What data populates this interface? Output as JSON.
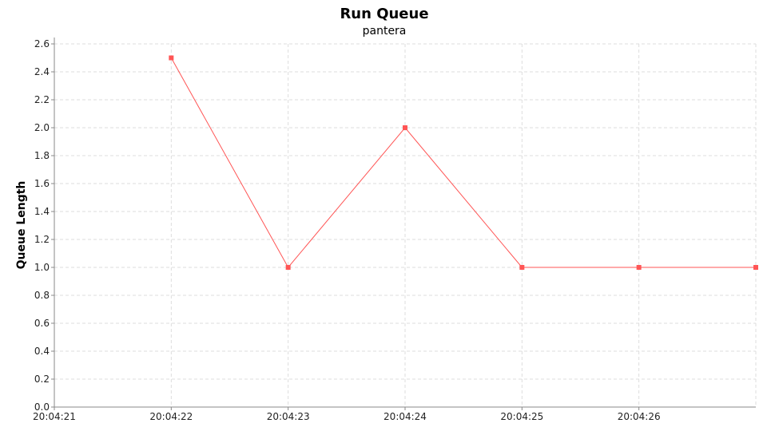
{
  "chart_data": {
    "type": "line",
    "title": "Run Queue",
    "subtitle": "pantera",
    "xlabel": "",
    "ylabel": "Queue Length",
    "x_ticks": [
      "20:04:21",
      "20:04:22",
      "20:04:23",
      "20:04:24",
      "20:04:25",
      "20:04:26"
    ],
    "x": [
      "20:04:22",
      "20:04:23",
      "20:04:24",
      "20:04:25",
      "20:04:26",
      "20:04:27"
    ],
    "series": [
      {
        "values": [
          2.5,
          1.0,
          2.0,
          1.0,
          1.0,
          1.0
        ],
        "color": "#ff5555"
      }
    ],
    "xlim": [
      "20:04:21",
      "20:04:27"
    ],
    "ylim": [
      0,
      2.6
    ],
    "y_ticks": [
      "0.0",
      "0.2",
      "0.4",
      "0.6",
      "0.8",
      "1.0",
      "1.2",
      "1.4",
      "1.6",
      "1.8",
      "2.0",
      "2.2",
      "2.4",
      "2.6"
    ],
    "grid": true,
    "legend": "none"
  }
}
